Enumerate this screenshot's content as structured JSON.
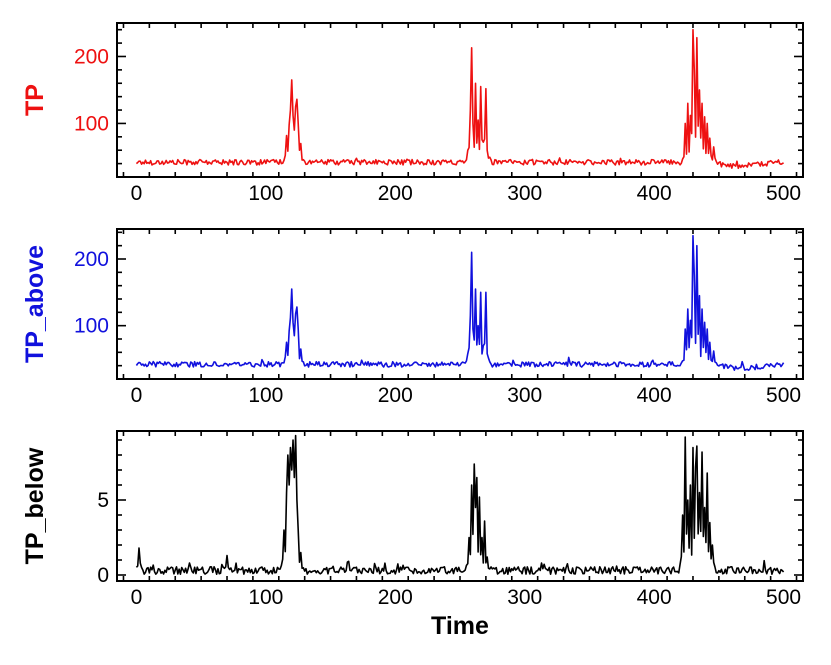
{
  "chart_data": [
    {
      "type": "line",
      "ylabel": "TP",
      "xlabel": "",
      "color": "#ee1111",
      "xlim": [
        -15,
        515
      ],
      "ylim": [
        20,
        250
      ],
      "yticks": [
        100,
        200
      ],
      "xticks": [
        0,
        100,
        200,
        300,
        400,
        500
      ],
      "x": "0..500 (step 1)",
      "baseline": 42,
      "noise": 4,
      "series_name": "TP",
      "peaks": [
        {
          "x": 116,
          "y": 82
        },
        {
          "x": 118,
          "y": 98
        },
        {
          "x": 119,
          "y": 120
        },
        {
          "x": 120,
          "y": 165
        },
        {
          "x": 121,
          "y": 112
        },
        {
          "x": 122,
          "y": 90
        },
        {
          "x": 123,
          "y": 125
        },
        {
          "x": 124,
          "y": 136
        },
        {
          "x": 125,
          "y": 100
        },
        {
          "x": 127,
          "y": 70
        },
        {
          "x": 256,
          "y": 60
        },
        {
          "x": 258,
          "y": 120
        },
        {
          "x": 259,
          "y": 213
        },
        {
          "x": 260,
          "y": 100
        },
        {
          "x": 262,
          "y": 160
        },
        {
          "x": 264,
          "y": 105
        },
        {
          "x": 266,
          "y": 155
        },
        {
          "x": 268,
          "y": 72
        },
        {
          "x": 270,
          "y": 152
        },
        {
          "x": 271,
          "y": 60
        },
        {
          "x": 424,
          "y": 100
        },
        {
          "x": 426,
          "y": 130
        },
        {
          "x": 428,
          "y": 112
        },
        {
          "x": 430,
          "y": 240
        },
        {
          "x": 431,
          "y": 180
        },
        {
          "x": 433,
          "y": 228
        },
        {
          "x": 435,
          "y": 150
        },
        {
          "x": 437,
          "y": 130
        },
        {
          "x": 439,
          "y": 110
        },
        {
          "x": 441,
          "y": 100
        },
        {
          "x": 443,
          "y": 78
        },
        {
          "x": 446,
          "y": 65
        }
      ]
    },
    {
      "type": "line",
      "ylabel": "TP_above",
      "xlabel": "",
      "color": "#1111dd",
      "xlim": [
        -15,
        515
      ],
      "ylim": [
        20,
        245
      ],
      "yticks": [
        100,
        200
      ],
      "xticks": [
        0,
        100,
        200,
        300,
        400,
        500
      ],
      "x": "0..500 (step 1)",
      "baseline": 42,
      "noise": 4,
      "series_name": "TP_above",
      "peaks": [
        {
          "x": 116,
          "y": 75
        },
        {
          "x": 118,
          "y": 92
        },
        {
          "x": 119,
          "y": 112
        },
        {
          "x": 120,
          "y": 155
        },
        {
          "x": 121,
          "y": 105
        },
        {
          "x": 122,
          "y": 85
        },
        {
          "x": 123,
          "y": 118
        },
        {
          "x": 124,
          "y": 128
        },
        {
          "x": 125,
          "y": 95
        },
        {
          "x": 127,
          "y": 65
        },
        {
          "x": 256,
          "y": 58
        },
        {
          "x": 258,
          "y": 115
        },
        {
          "x": 259,
          "y": 210
        },
        {
          "x": 260,
          "y": 95
        },
        {
          "x": 262,
          "y": 155
        },
        {
          "x": 264,
          "y": 100
        },
        {
          "x": 266,
          "y": 150
        },
        {
          "x": 268,
          "y": 70
        },
        {
          "x": 270,
          "y": 150
        },
        {
          "x": 271,
          "y": 58
        },
        {
          "x": 424,
          "y": 95
        },
        {
          "x": 426,
          "y": 125
        },
        {
          "x": 428,
          "y": 108
        },
        {
          "x": 430,
          "y": 235
        },
        {
          "x": 431,
          "y": 175
        },
        {
          "x": 433,
          "y": 220
        },
        {
          "x": 435,
          "y": 145
        },
        {
          "x": 437,
          "y": 125
        },
        {
          "x": 439,
          "y": 105
        },
        {
          "x": 441,
          "y": 95
        },
        {
          "x": 443,
          "y": 75
        },
        {
          "x": 446,
          "y": 62
        }
      ]
    },
    {
      "type": "line",
      "ylabel": "TP_below",
      "xlabel": "Time",
      "color": "#000000",
      "xlim": [
        -15,
        515
      ],
      "ylim": [
        -0.4,
        9.6
      ],
      "yticks": [
        0,
        5
      ],
      "xticks": [
        0,
        100,
        200,
        300,
        400,
        500
      ],
      "x": "0..500 (step 1)",
      "baseline": 0.3,
      "noise": 0.25,
      "series_name": "TP_below",
      "peaks": [
        {
          "x": 2,
          "y": 1.8
        },
        {
          "x": 70,
          "y": 1.3
        },
        {
          "x": 114,
          "y": 3.0
        },
        {
          "x": 116,
          "y": 5.5
        },
        {
          "x": 117,
          "y": 8.0
        },
        {
          "x": 118,
          "y": 6.0
        },
        {
          "x": 119,
          "y": 8.5
        },
        {
          "x": 120,
          "y": 7.0
        },
        {
          "x": 121,
          "y": 9.0
        },
        {
          "x": 122,
          "y": 6.5
        },
        {
          "x": 123,
          "y": 9.3
        },
        {
          "x": 124,
          "y": 5.0
        },
        {
          "x": 125,
          "y": 3.0
        },
        {
          "x": 127,
          "y": 1.5
        },
        {
          "x": 257,
          "y": 2.5
        },
        {
          "x": 259,
          "y": 6.0
        },
        {
          "x": 261,
          "y": 7.4
        },
        {
          "x": 262,
          "y": 4.5
        },
        {
          "x": 263,
          "y": 6.5
        },
        {
          "x": 265,
          "y": 5.2
        },
        {
          "x": 267,
          "y": 2.5
        },
        {
          "x": 269,
          "y": 3.6
        },
        {
          "x": 271,
          "y": 1.2
        },
        {
          "x": 422,
          "y": 4.0
        },
        {
          "x": 424,
          "y": 9.2
        },
        {
          "x": 426,
          "y": 5.0
        },
        {
          "x": 428,
          "y": 6.0
        },
        {
          "x": 430,
          "y": 8.5
        },
        {
          "x": 432,
          "y": 7.2
        },
        {
          "x": 433,
          "y": 8.6
        },
        {
          "x": 435,
          "y": 5.5
        },
        {
          "x": 437,
          "y": 8.2
        },
        {
          "x": 439,
          "y": 4.5
        },
        {
          "x": 441,
          "y": 6.8
        },
        {
          "x": 443,
          "y": 3.5
        },
        {
          "x": 445,
          "y": 2.0
        }
      ]
    }
  ]
}
